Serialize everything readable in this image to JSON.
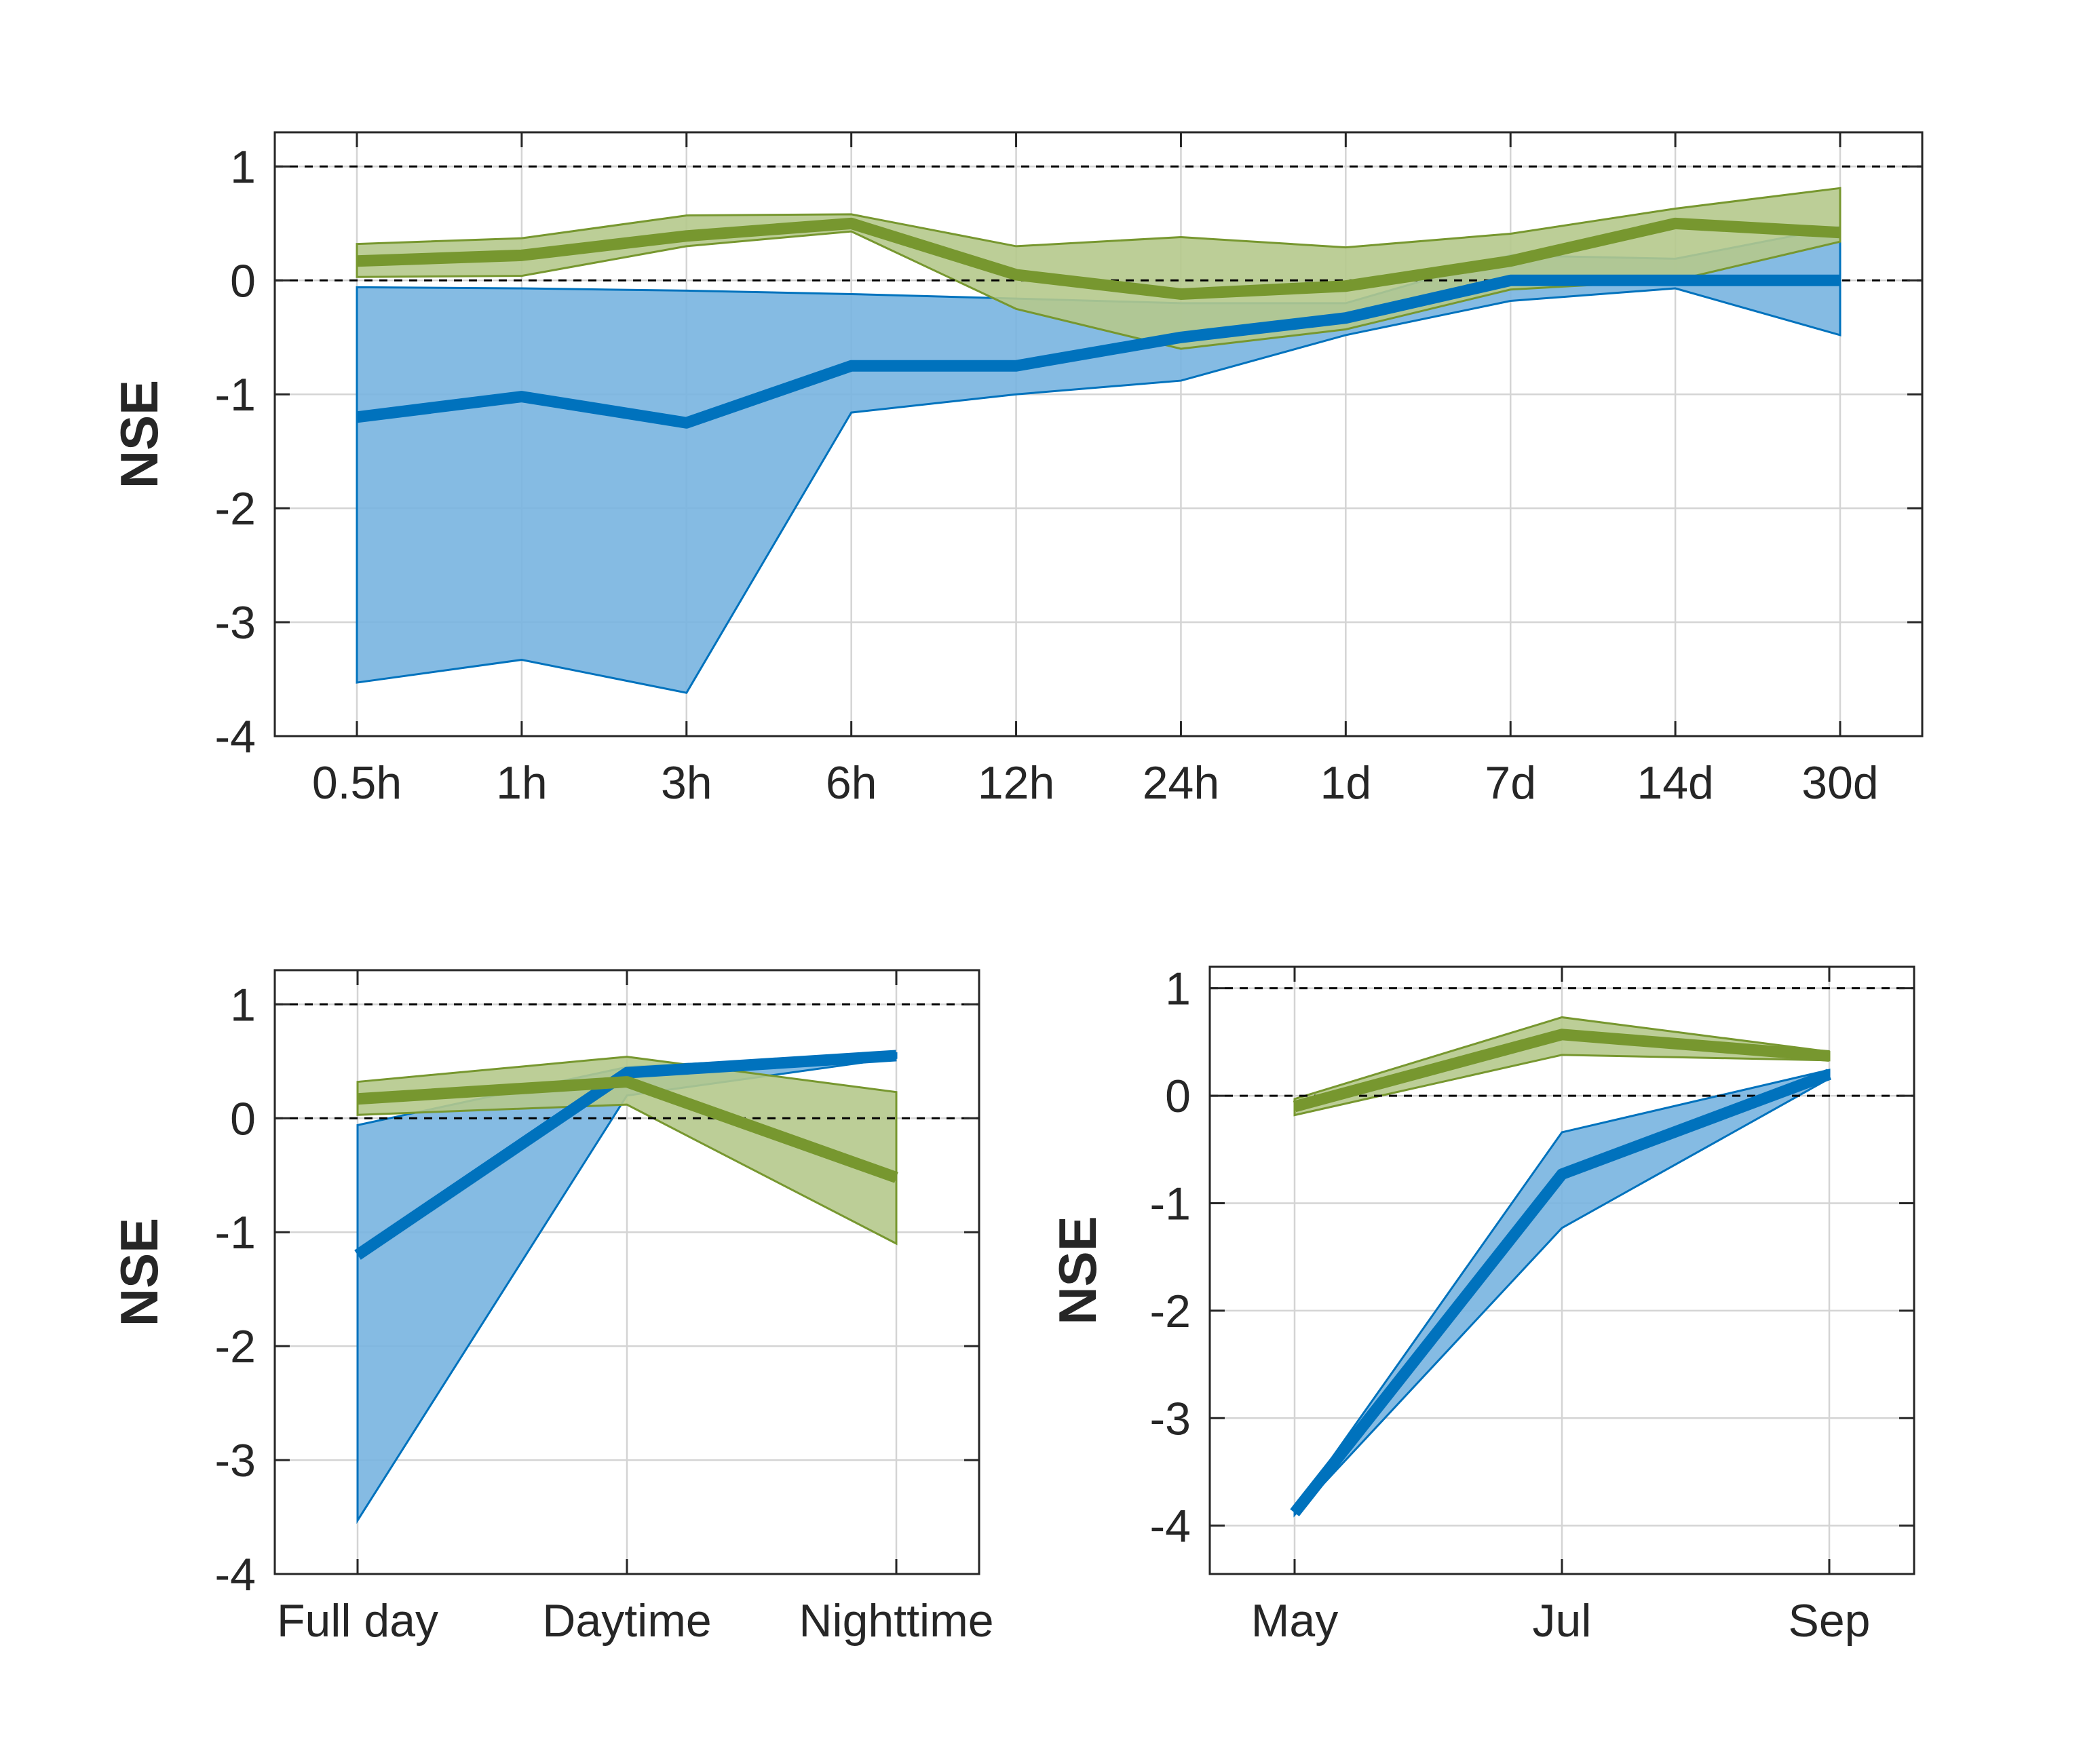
{
  "colors": {
    "blue": "#0072bd",
    "blue_fill": "#78b4e0",
    "green": "#77972f",
    "green_fill": "#b5c98c"
  },
  "chart_data": [
    {
      "type": "line",
      "panel": "top",
      "categories": [
        "0.5h",
        "1h",
        "3h",
        "6h",
        "12h",
        "24h",
        "1d",
        "7d",
        "14d",
        "30d"
      ],
      "xlabel": "",
      "ylabel": "NSE",
      "ylim": [
        -4,
        1.3
      ],
      "yticks": [
        -4,
        -3,
        -2,
        -1,
        0,
        1
      ],
      "reference_lines": [
        0,
        1
      ],
      "grid": true,
      "series": [
        {
          "color": "blue",
          "values": [
            -1.2,
            -1.02,
            -1.25,
            -0.75,
            -0.75,
            -0.5,
            -0.33,
            0.0,
            0.0,
            0.0
          ],
          "upper": [
            -0.06,
            -0.07,
            -0.09,
            -0.12,
            -0.16,
            -0.2,
            -0.2,
            0.22,
            0.19,
            0.47
          ],
          "lower": [
            -3.53,
            -3.33,
            -3.62,
            -1.16,
            -1.0,
            -0.88,
            -0.48,
            -0.18,
            -0.07,
            -0.48
          ]
        },
        {
          "color": "green",
          "values": [
            0.17,
            0.22,
            0.39,
            0.5,
            0.05,
            -0.12,
            -0.05,
            0.17,
            0.5,
            0.42
          ],
          "upper": [
            0.32,
            0.37,
            0.57,
            0.58,
            0.3,
            0.38,
            0.29,
            0.41,
            0.63,
            0.81
          ],
          "lower": [
            0.03,
            0.04,
            0.3,
            0.43,
            -0.25,
            -0.6,
            -0.43,
            -0.08,
            0.0,
            0.34
          ]
        }
      ]
    },
    {
      "type": "line",
      "panel": "bottom-left",
      "categories": [
        "Full day",
        "Daytime",
        "Nighttime"
      ],
      "xlabel": "",
      "ylabel": "NSE",
      "ylim": [
        -4,
        1.3
      ],
      "yticks": [
        -4,
        -3,
        -2,
        -1,
        0,
        1
      ],
      "reference_lines": [
        0,
        1
      ],
      "grid": true,
      "series": [
        {
          "color": "blue",
          "values": [
            -1.2,
            0.4,
            0.55
          ],
          "upper": [
            -0.06,
            0.45,
            0.57
          ],
          "lower": [
            -3.53,
            0.2,
            0.53
          ]
        },
        {
          "color": "green",
          "values": [
            0.17,
            0.32,
            -0.52
          ],
          "upper": [
            0.32,
            0.54,
            0.23
          ],
          "lower": [
            0.03,
            0.12,
            -1.1
          ]
        }
      ]
    },
    {
      "type": "line",
      "panel": "bottom-right",
      "categories": [
        "May",
        "Jul",
        "Sep"
      ],
      "xlabel": "",
      "ylabel": "NSE",
      "ylim": [
        -4.45,
        1.2
      ],
      "yticks": [
        -4,
        -3,
        -2,
        -1,
        0,
        1
      ],
      "reference_lines": [
        0,
        1
      ],
      "grid": true,
      "series": [
        {
          "color": "blue",
          "values": [
            -3.88,
            -0.73,
            0.2
          ],
          "upper": [
            -3.86,
            -0.34,
            0.24
          ],
          "lower": [
            -3.9,
            -1.23,
            0.16
          ]
        },
        {
          "color": "green",
          "values": [
            -0.1,
            0.57,
            0.37
          ],
          "upper": [
            -0.03,
            0.73,
            0.41
          ],
          "lower": [
            -0.18,
            0.38,
            0.33
          ]
        }
      ]
    }
  ]
}
